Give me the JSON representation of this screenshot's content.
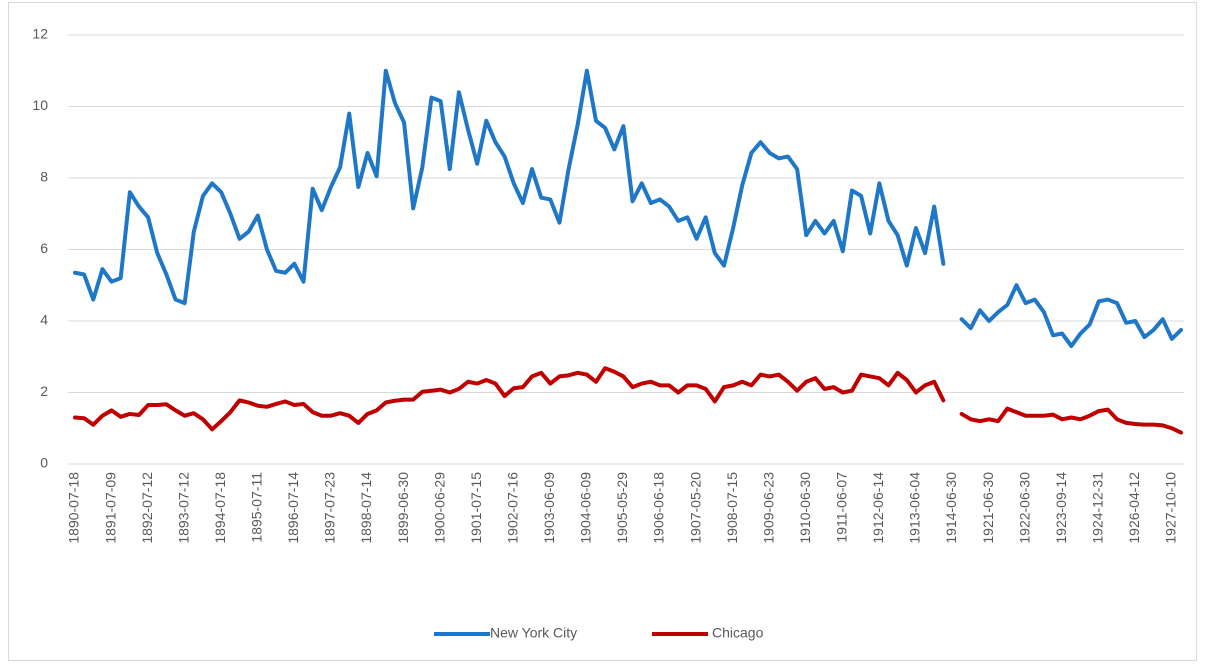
{
  "chart_data": {
    "type": "line",
    "categories": [
      "1890-07-18",
      null,
      null,
      null,
      "1891-07-09",
      null,
      null,
      null,
      "1892-07-12",
      null,
      null,
      null,
      "1893-07-12",
      null,
      null,
      null,
      "1894-07-18",
      null,
      null,
      null,
      "1895-07-11",
      null,
      null,
      null,
      "1896-07-14",
      null,
      null,
      null,
      "1897-07-23",
      null,
      null,
      null,
      "1898-07-14",
      null,
      null,
      null,
      "1899-06-30",
      null,
      null,
      null,
      "1900-06-29",
      null,
      null,
      null,
      "1901-07-15",
      null,
      null,
      null,
      "1902-07-16",
      null,
      null,
      null,
      "1903-06-09",
      null,
      null,
      null,
      "1904-06-09",
      null,
      null,
      null,
      "1905-05-29",
      null,
      null,
      null,
      "1906-06-18",
      null,
      null,
      null,
      "1907-05-20",
      null,
      null,
      null,
      "1908-07-15",
      null,
      null,
      null,
      "1909-06-23",
      null,
      null,
      null,
      "1910-06-30",
      null,
      null,
      null,
      "1911-06-07",
      null,
      null,
      null,
      "1912-06-14",
      null,
      null,
      null,
      "1913-06-04",
      null,
      null,
      null,
      "1914-06-30",
      null,
      null,
      null,
      "1921-06-30",
      null,
      null,
      null,
      "1922-06-30",
      null,
      null,
      null,
      "1923-09-14",
      null,
      null,
      null,
      "1924-12-31",
      null,
      null,
      null,
      "1926-04-12",
      null,
      null,
      null,
      "1927-10-10",
      null
    ],
    "series": [
      {
        "name": "New York City",
        "color": "#1f77c8",
        "values": [
          5.35,
          5.3,
          4.6,
          5.45,
          5.1,
          5.2,
          7.6,
          7.2,
          6.9,
          5.9,
          5.3,
          4.6,
          4.5,
          6.5,
          7.5,
          7.85,
          7.6,
          7.0,
          6.3,
          6.5,
          6.95,
          6.0,
          5.4,
          5.35,
          5.6,
          5.1,
          7.7,
          7.1,
          7.75,
          8.3,
          9.8,
          7.75,
          8.7,
          8.05,
          11.0,
          10.1,
          9.55,
          7.15,
          8.3,
          10.25,
          10.15,
          8.25,
          10.4,
          9.35,
          8.4,
          9.6,
          9.0,
          8.6,
          7.85,
          7.3,
          8.25,
          7.45,
          7.4,
          6.75,
          8.25,
          9.5,
          11.0,
          9.6,
          9.4,
          8.8,
          9.45,
          7.35,
          7.85,
          7.3,
          7.4,
          7.2,
          6.8,
          6.9,
          6.3,
          6.9,
          5.9,
          5.55,
          6.6,
          7.8,
          8.7,
          9.0,
          8.7,
          8.55,
          8.6,
          8.25,
          6.4,
          6.8,
          6.45,
          6.8,
          5.95,
          7.65,
          7.5,
          6.45,
          7.85,
          6.8,
          6.4,
          5.55,
          6.6,
          5.9,
          7.2,
          5.6,
          null,
          4.05,
          3.8,
          4.3,
          4.0,
          4.25,
          4.45,
          5.0,
          4.5,
          4.6,
          4.25,
          3.6,
          3.65,
          3.3,
          3.65,
          3.9,
          4.55,
          4.6,
          4.5,
          3.95,
          4.0,
          3.55,
          3.75,
          4.05,
          3.5,
          3.75
        ]
      },
      {
        "name": "Chicago",
        "color": "#c00000",
        "values": [
          1.3,
          1.28,
          1.1,
          1.35,
          1.5,
          1.32,
          1.4,
          1.37,
          1.65,
          1.65,
          1.67,
          1.5,
          1.35,
          1.42,
          1.25,
          0.97,
          1.2,
          1.45,
          1.78,
          1.72,
          1.63,
          1.6,
          1.68,
          1.75,
          1.65,
          1.68,
          1.45,
          1.35,
          1.35,
          1.42,
          1.35,
          1.15,
          1.4,
          1.5,
          1.72,
          1.77,
          1.8,
          1.8,
          2.02,
          2.05,
          2.08,
          2.0,
          2.1,
          2.3,
          2.25,
          2.35,
          2.25,
          1.9,
          2.12,
          2.15,
          2.45,
          2.55,
          2.25,
          2.45,
          2.48,
          2.55,
          2.5,
          2.3,
          2.68,
          2.58,
          2.45,
          2.15,
          2.25,
          2.3,
          2.2,
          2.2,
          2.0,
          2.2,
          2.2,
          2.1,
          1.75,
          2.15,
          2.2,
          2.3,
          2.2,
          2.5,
          2.45,
          2.5,
          2.3,
          2.05,
          2.3,
          2.4,
          2.1,
          2.15,
          2.0,
          2.05,
          2.5,
          2.45,
          2.4,
          2.2,
          2.55,
          2.35,
          2.0,
          2.2,
          2.3,
          1.78,
          null,
          1.4,
          1.25,
          1.2,
          1.25,
          1.2,
          1.55,
          1.45,
          1.35,
          1.35,
          1.35,
          1.38,
          1.25,
          1.3,
          1.25,
          1.35,
          1.48,
          1.52,
          1.25,
          1.15,
          1.12,
          1.1,
          1.1,
          1.08,
          1.0,
          0.88
        ]
      }
    ],
    "ylim": [
      0,
      12
    ],
    "yticks": [
      0,
      2,
      4,
      6,
      8,
      10,
      12
    ],
    "grid": true,
    "legend": "bottom"
  }
}
